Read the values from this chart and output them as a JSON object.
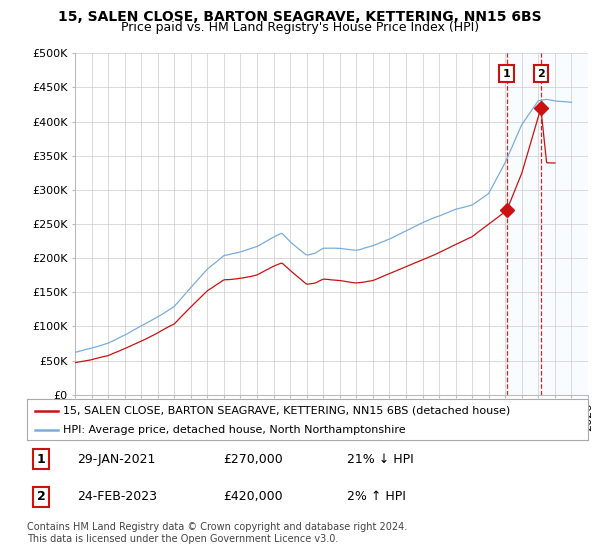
{
  "title": "15, SALEN CLOSE, BARTON SEAGRAVE, KETTERING, NN15 6BS",
  "subtitle": "Price paid vs. HM Land Registry's House Price Index (HPI)",
  "ylabel_ticks": [
    "£0",
    "£50K",
    "£100K",
    "£150K",
    "£200K",
    "£250K",
    "£300K",
    "£350K",
    "£400K",
    "£450K",
    "£500K"
  ],
  "ytick_values": [
    0,
    50000,
    100000,
    150000,
    200000,
    250000,
    300000,
    350000,
    400000,
    450000,
    500000
  ],
  "ylim": [
    0,
    500000
  ],
  "xlim_start": 1995.0,
  "xlim_end": 2026.0,
  "hpi_color": "#7aaddc",
  "price_color": "#cc1111",
  "annotation_box_color": "#cc1111",
  "grid_color": "#cccccc",
  "bg_color": "#ffffff",
  "plot_bg_color": "#ffffff",
  "shade_color": "#ddeeff",
  "legend_label_price": "15, SALEN CLOSE, BARTON SEAGRAVE, KETTERING, NN15 6BS (detached house)",
  "legend_label_hpi": "HPI: Average price, detached house, North Northamptonshire",
  "point1_date": "29-JAN-2021",
  "point1_price": "£270,000",
  "point1_hpi": "21% ↓ HPI",
  "point1_x": 2021.08,
  "point1_y": 270000,
  "point2_date": "24-FEB-2023",
  "point2_price": "£420,000",
  "point2_hpi": "2% ↑ HPI",
  "point2_x": 2023.15,
  "point2_y": 420000,
  "footer": "Contains HM Land Registry data © Crown copyright and database right 2024.\nThis data is licensed under the Open Government Licence v3.0.",
  "title_fontsize": 10,
  "subtitle_fontsize": 9,
  "tick_fontsize": 8,
  "legend_fontsize": 8,
  "footer_fontsize": 7
}
